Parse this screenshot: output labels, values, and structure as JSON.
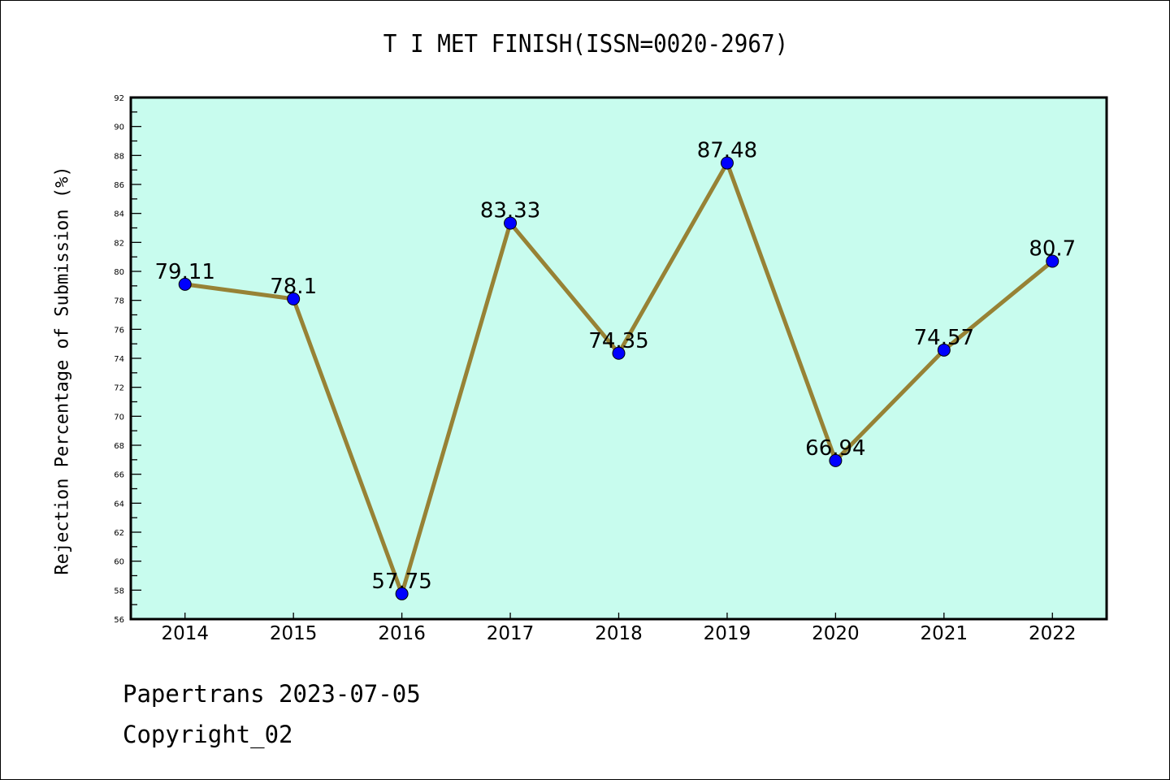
{
  "chart_data": {
    "type": "line",
    "title": "T I MET FINISH(ISSN=0020-2967)",
    "xlabel": "",
    "ylabel": "Rejection Percentage of Submission (%)",
    "categories": [
      "2014",
      "2015",
      "2016",
      "2017",
      "2018",
      "2019",
      "2020",
      "2021",
      "2022"
    ],
    "series": [
      {
        "name": "Rejection Percentage",
        "values": [
          79.11,
          78.1,
          57.75,
          83.33,
          74.35,
          87.48,
          66.94,
          74.57,
          80.7
        ]
      }
    ],
    "data_labels": [
      "79.11",
      "78.1",
      "57.75",
      "83.33",
      "74.35",
      "87.48",
      "66.94",
      "74.57",
      "80.7"
    ],
    "ylim": [
      56,
      92
    ],
    "yticks": [
      56,
      58,
      60,
      62,
      64,
      66,
      68,
      70,
      72,
      74,
      76,
      78,
      80,
      82,
      84,
      86,
      88,
      90,
      92
    ],
    "grid": false,
    "colors": {
      "plot_bg": "#c8fcee",
      "line": "#978235",
      "marker": "#0000ff"
    }
  },
  "footer": {
    "line1": "Papertrans 2023-07-05",
    "line2": "Copyright_02"
  }
}
